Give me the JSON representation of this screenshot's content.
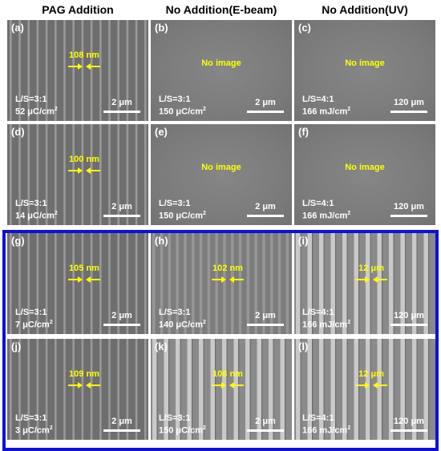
{
  "columns": [
    "PAG Addition",
    "No Addition(E-beam)",
    "No Addition(UV)"
  ],
  "colors": {
    "frame": "#1010d8",
    "annotation": "#ffff00",
    "label": "#ffffff"
  },
  "panels": [
    {
      "label": "(a)",
      "measure": "108 nm",
      "ratio": "L/S=3:1",
      "dose_value": "52 μC/cm",
      "dose_sup": "2",
      "scalebar": "2 μm",
      "pattern": "sem-lines-fine"
    },
    {
      "label": "(b)",
      "note": "No image",
      "ratio": "L/S=3:1",
      "dose_value": "150 μC/cm",
      "dose_sup": "2",
      "scalebar": "2 μm",
      "pattern": "blank"
    },
    {
      "label": "(c)",
      "note": "No image",
      "ratio": "L/S=4:1",
      "dose_value": "166 mJ/cm",
      "dose_sup": "2",
      "scalebar": "120 μm",
      "pattern": "blank"
    },
    {
      "label": "(d)",
      "measure": "100 nm",
      "ratio": "L/S=3:1",
      "dose_value": "14 μC/cm",
      "dose_sup": "2",
      "scalebar": "2 μm",
      "pattern": "sem-lines-fine"
    },
    {
      "label": "(e)",
      "note": "No image",
      "ratio": "L/S=3:1",
      "dose_value": "150 μC/cm",
      "dose_sup": "2",
      "scalebar": "2 μm",
      "pattern": "blank"
    },
    {
      "label": "(f)",
      "note": "No image",
      "ratio": "L/S=4:1",
      "dose_value": "166 mJ/cm",
      "dose_sup": "2",
      "scalebar": "120 μm",
      "pattern": "blank"
    },
    {
      "label": "(g)",
      "measure": "105 nm",
      "ratio": "L/S=3:1",
      "dose_value": "7 μC/cm",
      "dose_sup": "2",
      "scalebar": "2 μm",
      "pattern": "sem-lines-fine"
    },
    {
      "label": "(h)",
      "measure": "102 nm",
      "ratio": "L/S=3:1",
      "dose_value": "140 μC/cm",
      "dose_sup": "2",
      "scalebar": "2 μm",
      "pattern": "sem-lines-faint"
    },
    {
      "label": "(i)",
      "measure": "12 μm",
      "ratio": "L/S=4:1",
      "dose_value": "166 mJ/cm",
      "dose_sup": "2",
      "scalebar": "120 μm",
      "pattern": "sem-lines-bright"
    },
    {
      "label": "(j)",
      "measure": "109 nm",
      "ratio": "L/S=3:1",
      "dose_value": "3 μC/cm",
      "dose_sup": "2",
      "scalebar": "2 μm",
      "pattern": "sem-lines-fine"
    },
    {
      "label": "(k)",
      "measure": "108 nm",
      "ratio": "L/S=3:1",
      "dose_value": "150 μC/cm",
      "dose_sup": "2",
      "scalebar": "2 μm",
      "pattern": "sem-lines-bright"
    },
    {
      "label": "(l)",
      "measure": "12 μm",
      "ratio": "L/S=4:1",
      "dose_value": "166 mJ/cm",
      "dose_sup": "2",
      "scalebar": "120 μm",
      "pattern": "sem-lines-bright"
    }
  ]
}
